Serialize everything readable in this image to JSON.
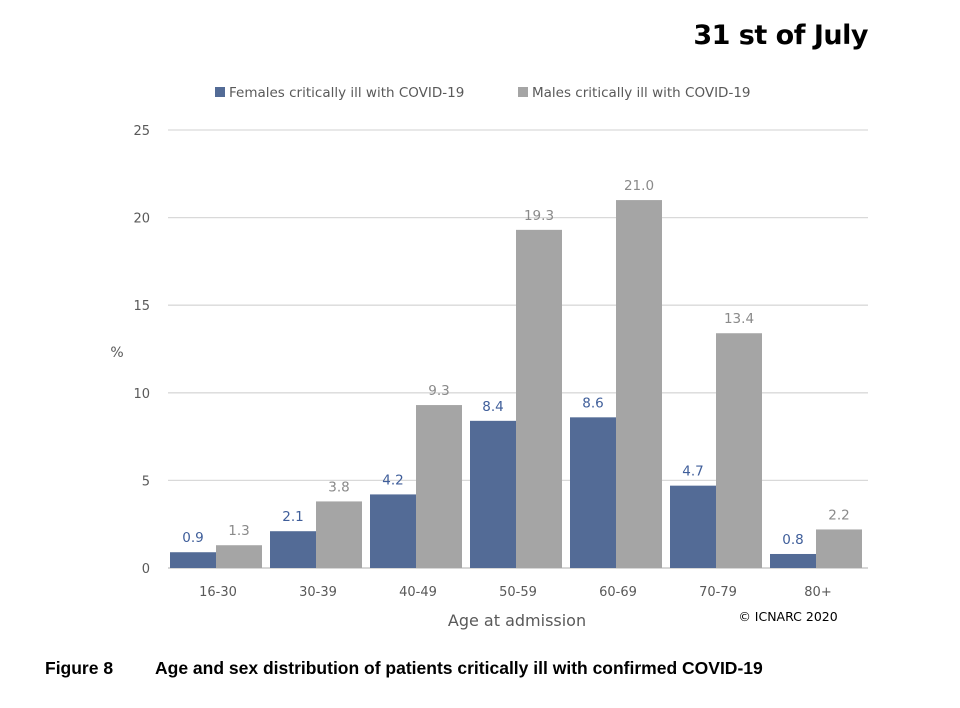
{
  "header": {
    "date_label": "31 st of July"
  },
  "caption": {
    "figure_number": "Figure 8",
    "text": "Age and sex distribution of patients critically ill with confirmed COVID-19"
  },
  "copyright": "© ICNARC 2020",
  "colors": {
    "females": "#536b96",
    "males": "#a5a5a5",
    "females_label": "#3f5e9a",
    "males_label": "#8a8a8a"
  },
  "chart_data": {
    "type": "bar",
    "title": "",
    "xlabel": "Age at admission",
    "ylabel": "%",
    "ylim": [
      0,
      25
    ],
    "yticks": [
      0,
      5,
      10,
      15,
      20,
      25
    ],
    "grid": true,
    "legend_position": "top",
    "categories": [
      "16-30",
      "30-39",
      "40-49",
      "50-59",
      "60-69",
      "70-79",
      "80+"
    ],
    "series": [
      {
        "name": "Females critically ill with COVID-19",
        "values": [
          0.9,
          2.1,
          4.2,
          8.4,
          8.6,
          4.7,
          0.8
        ]
      },
      {
        "name": "Males critically ill with COVID-19",
        "values": [
          1.3,
          3.8,
          9.3,
          19.3,
          21.0,
          13.4,
          2.2
        ]
      }
    ]
  }
}
